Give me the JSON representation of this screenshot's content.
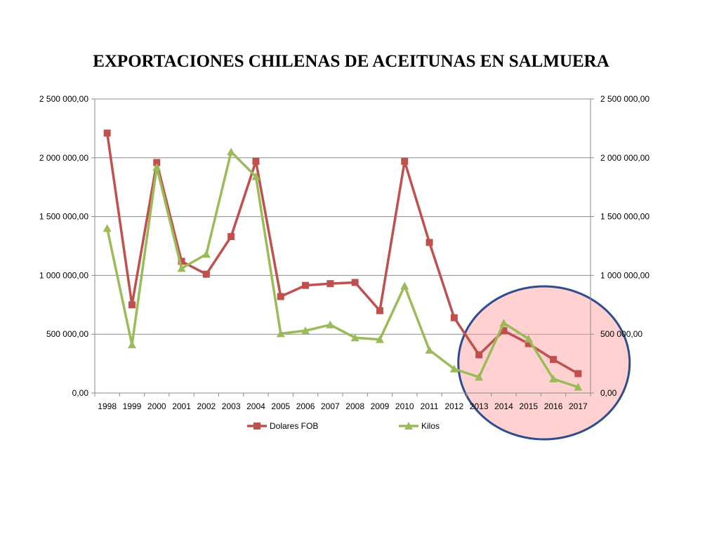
{
  "chart_data": {
    "type": "line",
    "title": "EXPORTACIONES CHILENAS DE ACEITUNAS EN SALMUERA",
    "categories": [
      "1998",
      "1999",
      "2000",
      "2001",
      "2002",
      "2003",
      "2004",
      "2005",
      "2006",
      "2007",
      "2008",
      "2009",
      "2010",
      "2011",
      "2012",
      "2013",
      "2014",
      "2015",
      "2016",
      "2017"
    ],
    "y_ticks": [
      "0,00",
      "500 000,00",
      "1 000 000,00",
      "1 500 000,00",
      "2 000 000,00",
      "2 500 000,00"
    ],
    "ylim": [
      0,
      2500000
    ],
    "secondary_ylim": [
      0,
      2500000
    ],
    "grid": true,
    "legend_position": "bottom",
    "series": [
      {
        "name": "Dolares FOB",
        "color": "#c0504d",
        "marker": "square",
        "axis": "left",
        "values": [
          2210000,
          750000,
          1960000,
          1120000,
          1010000,
          1330000,
          1970000,
          820000,
          915000,
          930000,
          940000,
          700000,
          1970000,
          1280000,
          640000,
          325000,
          530000,
          420000,
          285000,
          165000
        ]
      },
      {
        "name": "Kilos",
        "color": "#9bbb59",
        "marker": "triangle",
        "axis": "right",
        "values": [
          1400000,
          410000,
          1920000,
          1060000,
          1180000,
          2050000,
          1840000,
          505000,
          530000,
          580000,
          470000,
          455000,
          910000,
          365000,
          205000,
          135000,
          595000,
          460000,
          120000,
          50000
        ]
      }
    ],
    "highlight": {
      "fill": "#ff9999",
      "stroke": "#2e4d8f",
      "from_category": "2013",
      "to_category": "2017"
    }
  }
}
